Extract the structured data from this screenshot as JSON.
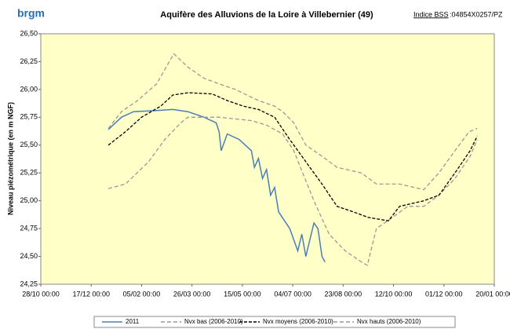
{
  "logo": "brgm",
  "bss_label": "Indice BSS",
  "bss_value": ":04854X0257/PZ",
  "chart_data": {
    "type": "line",
    "title": "Aquifère des Alluvions de la Loire à Villebernier (49)",
    "y_label": "Niveau piézométrique (en m NGF)",
    "xlim": [
      0,
      450
    ],
    "xticks": [
      {
        "value": 0,
        "label": "28/10 00:00"
      },
      {
        "value": 50,
        "label": "17/12 00:00"
      },
      {
        "value": 100,
        "label": "05/02 00:00"
      },
      {
        "value": 150,
        "label": "26/03 00:00"
      },
      {
        "value": 200,
        "label": "15/05 00:00"
      },
      {
        "value": 250,
        "label": "04/07 00:00"
      },
      {
        "value": 300,
        "label": "23/08 00:00"
      },
      {
        "value": 350,
        "label": "12/10 00:00"
      },
      {
        "value": 400,
        "label": "01/12 00:00"
      },
      {
        "value": 450,
        "label": "20/01 00:00"
      }
    ],
    "ylim": [
      24.25,
      26.5
    ],
    "yticks": [
      {
        "value": 24.25,
        "label": "24,25"
      },
      {
        "value": 24.5,
        "label": "24,50"
      },
      {
        "value": 24.75,
        "label": "24,75"
      },
      {
        "value": 25,
        "label": "25,00"
      },
      {
        "value": 25.25,
        "label": "25,25"
      },
      {
        "value": 25.5,
        "label": "25,50"
      },
      {
        "value": 25.75,
        "label": "25,75"
      },
      {
        "value": 26,
        "label": "26,00"
      },
      {
        "value": 26.25,
        "label": "26,25"
      },
      {
        "value": 26.5,
        "label": "26,50"
      }
    ],
    "series": [
      {
        "name": "2011",
        "color": "#4a7ebb",
        "dash": "none",
        "x": [
          67,
          80,
          92,
          115,
          131,
          146,
          162,
          174,
          177,
          179,
          185,
          197,
          209,
          212,
          216,
          220,
          224,
          228,
          232,
          236,
          247,
          255,
          259,
          263,
          271,
          275,
          279,
          282
        ],
        "values": [
          25.64,
          25.75,
          25.8,
          25.81,
          25.82,
          25.8,
          25.75,
          25.7,
          25.62,
          25.45,
          25.6,
          25.55,
          25.45,
          25.3,
          25.38,
          25.2,
          25.28,
          25.05,
          25.12,
          24.9,
          24.75,
          24.55,
          24.7,
          24.5,
          24.8,
          24.75,
          24.5,
          24.45
        ]
      },
      {
        "name": "Nvx bas (2006-2010)",
        "color": "#999999",
        "dash": "5,3",
        "x": [
          67,
          84,
          107,
          123,
          139,
          146,
          177,
          209,
          224,
          240,
          251,
          271,
          286,
          302,
          318,
          324,
          333,
          349,
          364,
          380,
          395,
          411,
          426,
          433
        ],
        "values": [
          25.11,
          25.15,
          25.35,
          25.55,
          25.7,
          25.75,
          25.75,
          25.72,
          25.68,
          25.6,
          25.45,
          25.0,
          24.7,
          24.55,
          24.45,
          24.42,
          24.75,
          24.85,
          24.95,
          24.95,
          25.05,
          25.2,
          25.4,
          25.55
        ]
      },
      {
        "name": "Nvx moyens (2006-2010)",
        "color": "#000000",
        "dash": "4,2",
        "x": [
          67,
          84,
          100,
          119,
          131,
          146,
          170,
          185,
          201,
          216,
          232,
          247,
          263,
          279,
          294,
          310,
          325,
          345,
          356,
          380,
          395,
          411,
          426,
          433
        ],
        "values": [
          25.5,
          25.62,
          25.75,
          25.85,
          25.95,
          25.97,
          25.96,
          25.9,
          25.85,
          25.82,
          25.75,
          25.55,
          25.35,
          25.15,
          24.95,
          24.9,
          24.85,
          24.82,
          24.95,
          25.0,
          25.05,
          25.25,
          25.45,
          25.58
        ]
      },
      {
        "name": "Nvx hauts (2006-2010)",
        "color": "#999999",
        "dash": "5,3",
        "x": [
          67,
          80,
          96,
          115,
          132,
          146,
          162,
          177,
          193,
          216,
          232,
          240,
          251,
          263,
          279,
          294,
          318,
          333,
          356,
          380,
          395,
          411,
          425,
          433
        ],
        "values": [
          25.65,
          25.8,
          25.9,
          26.05,
          26.32,
          26.2,
          26.1,
          26.05,
          26.0,
          25.9,
          25.85,
          25.8,
          25.7,
          25.5,
          25.4,
          25.3,
          25.25,
          25.15,
          25.15,
          25.1,
          25.25,
          25.45,
          25.62,
          25.65
        ]
      }
    ]
  }
}
